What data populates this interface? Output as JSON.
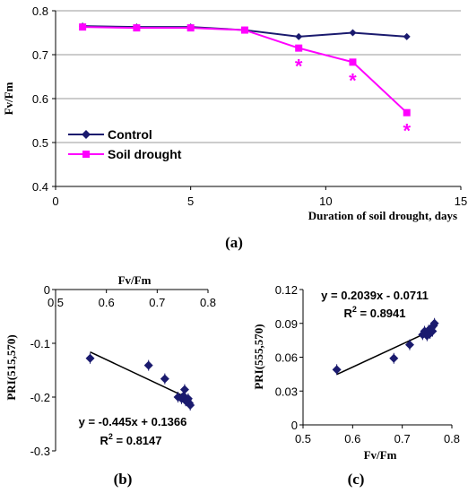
{
  "chart_data": [
    {
      "type": "line",
      "panel_label": "(a)",
      "xlabel": "Duration of soil drought, days",
      "ylabel": "Fv/Fm",
      "xlim": [
        0,
        15
      ],
      "ylim": [
        0.4,
        0.8
      ],
      "xticks": [
        "0",
        "5",
        "10",
        "15"
      ],
      "yticks": [
        "0.4",
        "0.5",
        "0.6",
        "0.7",
        "0.8"
      ],
      "legend_position": "lower-left",
      "series": [
        {
          "name": "Control",
          "color": "#1a1a6e",
          "marker": "diamond",
          "x": [
            1,
            3,
            5,
            7,
            9,
            11,
            13
          ],
          "y": [
            0.765,
            0.763,
            0.763,
            0.756,
            0.741,
            0.75,
            0.741
          ]
        },
        {
          "name": "Soil drought",
          "color": "#ff00ff",
          "marker": "square",
          "x": [
            1,
            3,
            5,
            7,
            9,
            11,
            13
          ],
          "y": [
            0.763,
            0.761,
            0.761,
            0.756,
            0.715,
            0.683,
            0.568
          ]
        }
      ],
      "significance_markers": [
        {
          "x": 9,
          "text": "*"
        },
        {
          "x": 11,
          "text": "*"
        },
        {
          "x": 13,
          "text": "*"
        }
      ]
    },
    {
      "type": "scatter",
      "panel_label": "(b)",
      "xlabel": "Fv/Fm",
      "ylabel": "PRI(515,570)",
      "xlim": [
        0.5,
        0.8
      ],
      "ylim": [
        -0.3,
        0
      ],
      "xticks": [
        "0.5",
        "0.6",
        "0.7",
        "0.8"
      ],
      "yticks": [
        "0",
        "-0.1",
        "-0.2",
        "-0.3"
      ],
      "x_axis_position": "top",
      "points": [
        {
          "x": 0.568,
          "y": -0.128
        },
        {
          "x": 0.683,
          "y": -0.141
        },
        {
          "x": 0.715,
          "y": -0.166
        },
        {
          "x": 0.741,
          "y": -0.2
        },
        {
          "x": 0.748,
          "y": -0.203
        },
        {
          "x": 0.752,
          "y": -0.198
        },
        {
          "x": 0.754,
          "y": -0.186
        },
        {
          "x": 0.756,
          "y": -0.207
        },
        {
          "x": 0.759,
          "y": -0.206
        },
        {
          "x": 0.761,
          "y": -0.203
        },
        {
          "x": 0.763,
          "y": -0.211
        },
        {
          "x": 0.765,
          "y": -0.215
        }
      ],
      "trendline": {
        "slope": -0.445,
        "intercept": 0.1366,
        "x_range": [
          0.568,
          0.765
        ]
      },
      "equation": "y = -0.445x + 0.1366",
      "r2_prefix": "R",
      "r2_sup": "2",
      "r2_value": " = 0.8147"
    },
    {
      "type": "scatter",
      "panel_label": "(c)",
      "xlabel": "Fv/Fm",
      "ylabel": "PRI(555,570)",
      "xlim": [
        0.5,
        0.8
      ],
      "ylim": [
        0,
        0.12
      ],
      "xticks": [
        "0.5",
        "0.6",
        "0.7",
        "0.8"
      ],
      "yticks": [
        "0",
        "0.03",
        "0.06",
        "0.09",
        "0.12"
      ],
      "points": [
        {
          "x": 0.568,
          "y": 0.049
        },
        {
          "x": 0.683,
          "y": 0.059
        },
        {
          "x": 0.715,
          "y": 0.071
        },
        {
          "x": 0.741,
          "y": 0.08
        },
        {
          "x": 0.745,
          "y": 0.083
        },
        {
          "x": 0.75,
          "y": 0.079
        },
        {
          "x": 0.753,
          "y": 0.084
        },
        {
          "x": 0.756,
          "y": 0.081
        },
        {
          "x": 0.759,
          "y": 0.086
        },
        {
          "x": 0.761,
          "y": 0.083
        },
        {
          "x": 0.763,
          "y": 0.088
        },
        {
          "x": 0.765,
          "y": 0.09
        }
      ],
      "trendline": {
        "slope": 0.2039,
        "intercept": -0.0711,
        "x_range": [
          0.568,
          0.765
        ]
      },
      "equation": "y = 0.2039x - 0.0711",
      "r2_prefix": "R",
      "r2_sup": "2",
      "r2_value": " = 0.8941"
    }
  ]
}
